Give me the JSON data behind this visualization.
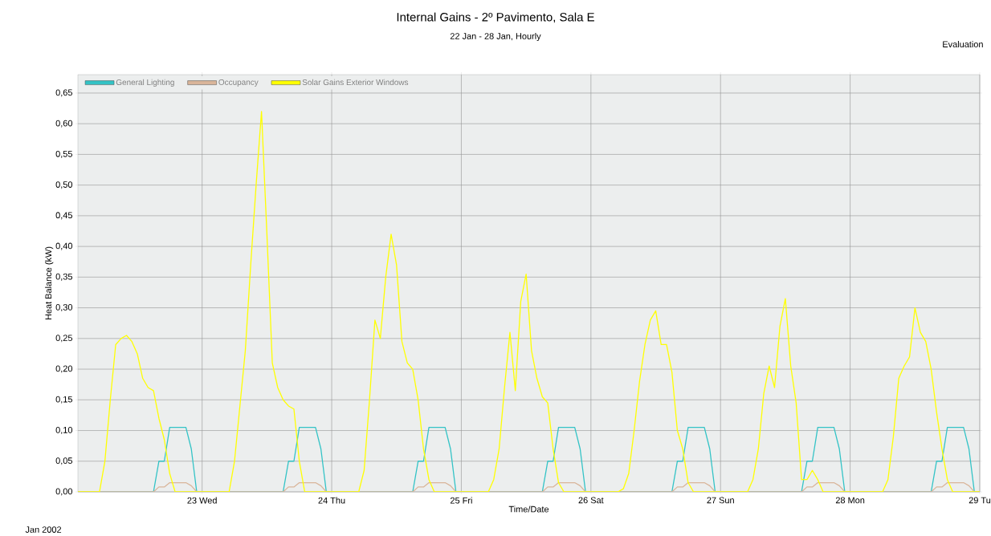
{
  "chart_data": {
    "type": "line",
    "title": "Internal Gains - 2º Pavimento, Sala E",
    "subtitle": "22 Jan - 28 Jan, Hourly",
    "xlabel": "Time/Date",
    "ylabel": "Heat Balance (kW)",
    "annotations": [
      "Evaluation",
      "Jan 2002"
    ],
    "xlim": [
      "2002-01-22T01:00",
      "2002-01-29T00:00"
    ],
    "ylim": [
      0,
      0.68
    ],
    "xticks": [
      {
        "value": "2002-01-23",
        "label": "23 Wed"
      },
      {
        "value": "2002-01-24",
        "label": "24 Thu"
      },
      {
        "value": "2002-01-25",
        "label": "25 Fri"
      },
      {
        "value": "2002-01-26",
        "label": "26 Sat"
      },
      {
        "value": "2002-01-27",
        "label": "27 Sun"
      },
      {
        "value": "2002-01-28",
        "label": "28 Mon"
      },
      {
        "value": "2002-01-29",
        "label": "29 Tu"
      }
    ],
    "yticks": [
      {
        "value": 0,
        "label": "0,00"
      },
      {
        "value": 0.05,
        "label": "0,05"
      },
      {
        "value": 0.1,
        "label": "0,10"
      },
      {
        "value": 0.15,
        "label": "0,15"
      },
      {
        "value": 0.2,
        "label": "0,20"
      },
      {
        "value": 0.25,
        "label": "0,25"
      },
      {
        "value": 0.3,
        "label": "0,30"
      },
      {
        "value": 0.35,
        "label": "0,35"
      },
      {
        "value": 0.4,
        "label": "0,40"
      },
      {
        "value": 0.45,
        "label": "0,45"
      },
      {
        "value": 0.5,
        "label": "0,50"
      },
      {
        "value": 0.55,
        "label": "0,55"
      },
      {
        "value": 0.6,
        "label": "0,60"
      },
      {
        "value": 0.65,
        "label": "0,65"
      }
    ],
    "grid": true,
    "legend": "top left",
    "series": [
      {
        "name": "General Lighting",
        "color": "#33c3c6",
        "x": [
          "2002-01-22T01:00",
          "2002-01-22T15:00",
          "2002-01-22T16:00",
          "2002-01-22T17:00",
          "2002-01-22T18:00",
          "2002-01-22T19:00",
          "2002-01-22T20:00",
          "2002-01-22T21:00",
          "2002-01-22T22:00",
          "2002-01-22T23:00",
          "2002-01-23T15:00",
          "2002-01-23T16:00",
          "2002-01-23T17:00",
          "2002-01-23T18:00",
          "2002-01-23T19:00",
          "2002-01-23T20:00",
          "2002-01-23T21:00",
          "2002-01-23T22:00",
          "2002-01-23T23:00",
          "2002-01-24T15:00",
          "2002-01-24T16:00",
          "2002-01-24T17:00",
          "2002-01-24T18:00",
          "2002-01-24T19:00",
          "2002-01-24T20:00",
          "2002-01-24T21:00",
          "2002-01-24T22:00",
          "2002-01-24T23:00",
          "2002-01-25T15:00",
          "2002-01-25T16:00",
          "2002-01-25T17:00",
          "2002-01-25T18:00",
          "2002-01-25T19:00",
          "2002-01-25T20:00",
          "2002-01-25T21:00",
          "2002-01-25T22:00",
          "2002-01-25T23:00",
          "2002-01-26T15:00",
          "2002-01-26T16:00",
          "2002-01-26T17:00",
          "2002-01-26T18:00",
          "2002-01-26T19:00",
          "2002-01-26T20:00",
          "2002-01-26T21:00",
          "2002-01-26T22:00",
          "2002-01-26T23:00",
          "2002-01-27T15:00",
          "2002-01-27T16:00",
          "2002-01-27T17:00",
          "2002-01-27T18:00",
          "2002-01-27T19:00",
          "2002-01-27T20:00",
          "2002-01-27T21:00",
          "2002-01-27T22:00",
          "2002-01-27T23:00",
          "2002-01-28T15:00",
          "2002-01-28T16:00",
          "2002-01-28T17:00",
          "2002-01-28T18:00",
          "2002-01-28T19:00",
          "2002-01-28T20:00",
          "2002-01-28T21:00",
          "2002-01-28T22:00",
          "2002-01-28T23:00",
          "2002-01-29T00:00"
        ],
        "values": [
          0,
          0,
          0.05,
          0.05,
          0.105,
          0.105,
          0.105,
          0.105,
          0.07,
          0,
          0,
          0.05,
          0.05,
          0.105,
          0.105,
          0.105,
          0.105,
          0.07,
          0,
          0,
          0.05,
          0.05,
          0.105,
          0.105,
          0.105,
          0.105,
          0.07,
          0,
          0,
          0.05,
          0.05,
          0.105,
          0.105,
          0.105,
          0.105,
          0.07,
          0,
          0,
          0.05,
          0.05,
          0.105,
          0.105,
          0.105,
          0.105,
          0.07,
          0,
          0,
          0.05,
          0.05,
          0.105,
          0.105,
          0.105,
          0.105,
          0.07,
          0,
          0,
          0.05,
          0.05,
          0.105,
          0.105,
          0.105,
          0.105,
          0.07,
          0,
          0
        ]
      },
      {
        "name": "Occupancy",
        "color": "#d9b59a",
        "x": [
          "2002-01-22T01:00",
          "2002-01-22T15:00",
          "2002-01-22T16:00",
          "2002-01-22T17:00",
          "2002-01-22T18:00",
          "2002-01-22T19:00",
          "2002-01-22T20:00",
          "2002-01-22T21:00",
          "2002-01-22T22:00",
          "2002-01-22T23:00",
          "2002-01-23T15:00",
          "2002-01-23T16:00",
          "2002-01-23T17:00",
          "2002-01-23T18:00",
          "2002-01-23T19:00",
          "2002-01-23T20:00",
          "2002-01-23T21:00",
          "2002-01-23T22:00",
          "2002-01-23T23:00",
          "2002-01-24T15:00",
          "2002-01-24T16:00",
          "2002-01-24T17:00",
          "2002-01-24T18:00",
          "2002-01-24T19:00",
          "2002-01-24T20:00",
          "2002-01-24T21:00",
          "2002-01-24T22:00",
          "2002-01-24T23:00",
          "2002-01-25T15:00",
          "2002-01-25T16:00",
          "2002-01-25T17:00",
          "2002-01-25T18:00",
          "2002-01-25T19:00",
          "2002-01-25T20:00",
          "2002-01-25T21:00",
          "2002-01-25T22:00",
          "2002-01-25T23:00",
          "2002-01-26T15:00",
          "2002-01-26T16:00",
          "2002-01-26T17:00",
          "2002-01-26T18:00",
          "2002-01-26T19:00",
          "2002-01-26T20:00",
          "2002-01-26T21:00",
          "2002-01-26T22:00",
          "2002-01-26T23:00",
          "2002-01-27T15:00",
          "2002-01-27T16:00",
          "2002-01-27T17:00",
          "2002-01-27T18:00",
          "2002-01-27T19:00",
          "2002-01-27T20:00",
          "2002-01-27T21:00",
          "2002-01-27T22:00",
          "2002-01-27T23:00",
          "2002-01-28T15:00",
          "2002-01-28T16:00",
          "2002-01-28T17:00",
          "2002-01-28T18:00",
          "2002-01-28T19:00",
          "2002-01-28T20:00",
          "2002-01-28T21:00",
          "2002-01-28T22:00",
          "2002-01-28T23:00",
          "2002-01-29T00:00"
        ],
        "values": [
          0,
          0,
          0.008,
          0.008,
          0.015,
          0.015,
          0.015,
          0.015,
          0.01,
          0,
          0,
          0.008,
          0.008,
          0.015,
          0.015,
          0.015,
          0.015,
          0.01,
          0,
          0,
          0.008,
          0.008,
          0.015,
          0.015,
          0.015,
          0.015,
          0.01,
          0,
          0,
          0.008,
          0.008,
          0.015,
          0.015,
          0.015,
          0.015,
          0.01,
          0,
          0,
          0.008,
          0.008,
          0.015,
          0.015,
          0.015,
          0.015,
          0.01,
          0,
          0,
          0.008,
          0.008,
          0.015,
          0.015,
          0.015,
          0.015,
          0.01,
          0,
          0,
          0.008,
          0.008,
          0.015,
          0.015,
          0.015,
          0.015,
          0.01,
          0,
          0
        ]
      },
      {
        "name": "Solar Gains Exterior Windows",
        "color": "#ffff00",
        "x": [
          "2002-01-22T01:00",
          "2002-01-22T05:00",
          "2002-01-22T06:00",
          "2002-01-22T07:00",
          "2002-01-22T08:00",
          "2002-01-22T09:00",
          "2002-01-22T10:00",
          "2002-01-22T11:00",
          "2002-01-22T12:00",
          "2002-01-22T13:00",
          "2002-01-22T14:00",
          "2002-01-22T15:00",
          "2002-01-22T16:00",
          "2002-01-22T17:00",
          "2002-01-22T18:00",
          "2002-01-22T19:00",
          "2002-01-23T05:00",
          "2002-01-23T06:00",
          "2002-01-23T07:00",
          "2002-01-23T08:00",
          "2002-01-23T09:00",
          "2002-01-23T10:00",
          "2002-01-23T11:00",
          "2002-01-23T12:00",
          "2002-01-23T13:00",
          "2002-01-23T14:00",
          "2002-01-23T15:00",
          "2002-01-23T16:00",
          "2002-01-23T17:00",
          "2002-01-23T18:00",
          "2002-01-23T19:00",
          "2002-01-24T05:00",
          "2002-01-24T06:00",
          "2002-01-24T07:00",
          "2002-01-24T08:00",
          "2002-01-24T09:00",
          "2002-01-24T10:00",
          "2002-01-24T11:00",
          "2002-01-24T12:00",
          "2002-01-24T13:00",
          "2002-01-24T14:00",
          "2002-01-24T15:00",
          "2002-01-24T16:00",
          "2002-01-24T17:00",
          "2002-01-24T18:00",
          "2002-01-24T19:00",
          "2002-01-25T05:00",
          "2002-01-25T06:00",
          "2002-01-25T07:00",
          "2002-01-25T08:00",
          "2002-01-25T09:00",
          "2002-01-25T10:00",
          "2002-01-25T11:00",
          "2002-01-25T12:00",
          "2002-01-25T13:00",
          "2002-01-25T14:00",
          "2002-01-25T15:00",
          "2002-01-25T16:00",
          "2002-01-25T17:00",
          "2002-01-25T18:00",
          "2002-01-25T19:00",
          "2002-01-26T05:00",
          "2002-01-26T06:00",
          "2002-01-26T07:00",
          "2002-01-26T08:00",
          "2002-01-26T09:00",
          "2002-01-26T10:00",
          "2002-01-26T11:00",
          "2002-01-26T12:00",
          "2002-01-26T13:00",
          "2002-01-26T14:00",
          "2002-01-26T15:00",
          "2002-01-26T16:00",
          "2002-01-26T17:00",
          "2002-01-26T18:00",
          "2002-01-26T19:00",
          "2002-01-27T05:00",
          "2002-01-27T06:00",
          "2002-01-27T07:00",
          "2002-01-27T08:00",
          "2002-01-27T09:00",
          "2002-01-27T10:00",
          "2002-01-27T11:00",
          "2002-01-27T12:00",
          "2002-01-27T13:00",
          "2002-01-27T14:00",
          "2002-01-27T15:00",
          "2002-01-27T16:00",
          "2002-01-27T17:00",
          "2002-01-27T18:00",
          "2002-01-27T19:00",
          "2002-01-28T05:00",
          "2002-01-28T06:00",
          "2002-01-28T07:00",
          "2002-01-28T08:00",
          "2002-01-28T09:00",
          "2002-01-28T10:00",
          "2002-01-28T11:00",
          "2002-01-28T12:00",
          "2002-01-28T13:00",
          "2002-01-28T14:00",
          "2002-01-28T15:00",
          "2002-01-28T16:00",
          "2002-01-28T17:00",
          "2002-01-28T18:00",
          "2002-01-28T19:00",
          "2002-01-29T00:00"
        ],
        "values": [
          0,
          0,
          0.05,
          0.15,
          0.24,
          0.25,
          0.255,
          0.245,
          0.225,
          0.185,
          0.17,
          0.165,
          0.12,
          0.085,
          0.03,
          0,
          0,
          0.05,
          0.14,
          0.23,
          0.37,
          0.5,
          0.62,
          0.42,
          0.21,
          0.17,
          0.15,
          0.14,
          0.135,
          0.05,
          0,
          0,
          0.035,
          0.15,
          0.28,
          0.25,
          0.35,
          0.42,
          0.37,
          0.245,
          0.21,
          0.2,
          0.15,
          0.07,
          0.02,
          0,
          0,
          0.02,
          0.07,
          0.17,
          0.26,
          0.165,
          0.31,
          0.355,
          0.23,
          0.185,
          0.155,
          0.145,
          0.07,
          0.015,
          0,
          0,
          0.005,
          0.03,
          0.1,
          0.18,
          0.24,
          0.28,
          0.295,
          0.24,
          0.24,
          0.195,
          0.1,
          0.07,
          0.015,
          0,
          0,
          0.02,
          0.07,
          0.16,
          0.205,
          0.17,
          0.27,
          0.315,
          0.205,
          0.145,
          0.02,
          0.02,
          0.035,
          0.02,
          0,
          0,
          0,
          0.02,
          0.09,
          0.185,
          0.205,
          0.22,
          0.3,
          0.26,
          0.245,
          0.2,
          0.13,
          0.07,
          0.02,
          0,
          0
        ]
      }
    ]
  }
}
